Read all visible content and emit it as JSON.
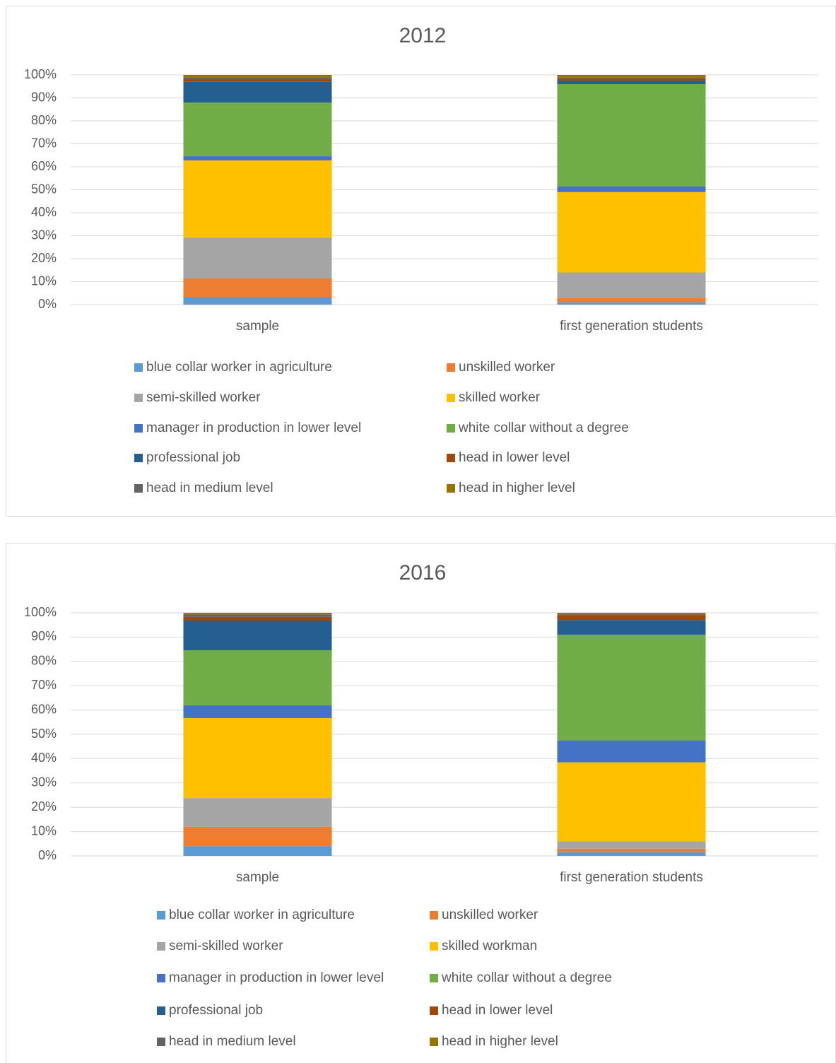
{
  "chart_data": [
    {
      "type": "bar",
      "stacked": true,
      "title": "2012",
      "categories": [
        "sample",
        "first generation students"
      ],
      "series": [
        {
          "name": "blue collar worker in agriculture",
          "color": "#5b9bd5",
          "values": [
            3.4,
            1
          ]
        },
        {
          "name": "unskilled worker",
          "color": "#ed7d31",
          "values": [
            8,
            2
          ]
        },
        {
          "name": "semi-skilled worker",
          "color": "#a5a5a5",
          "values": [
            17.8,
            11
          ]
        },
        {
          "name": "skilled worker",
          "color": "#ffc000",
          "values": [
            33.6,
            35
          ]
        },
        {
          "name": "manager in production in lower level",
          "color": "#4472c4",
          "values": [
            1.8,
            2.5
          ]
        },
        {
          "name": "white collar without a degree",
          "color": "#70ad47",
          "values": [
            23.4,
            44.5
          ]
        },
        {
          "name": "professional job",
          "color": "#255e91",
          "values": [
            9,
            1.5
          ]
        },
        {
          "name": "head in lower level",
          "color": "#9e480e",
          "values": [
            1,
            1
          ]
        },
        {
          "name": "head in medium level",
          "color": "#636363",
          "values": [
            1,
            0.5
          ]
        },
        {
          "name": "head in higher level",
          "color": "#997300",
          "values": [
            1,
            1
          ]
        }
      ],
      "ylim": [
        0,
        100
      ],
      "yticks": [
        {
          "value": 0,
          "label": "0%"
        },
        {
          "value": 10,
          "label": "10%"
        },
        {
          "value": 20,
          "label": "20%"
        },
        {
          "value": 30,
          "label": "30%"
        },
        {
          "value": 40,
          "label": "40%"
        },
        {
          "value": 50,
          "label": "50%"
        },
        {
          "value": 60,
          "label": "60%"
        },
        {
          "value": 70,
          "label": "70%"
        },
        {
          "value": 80,
          "label": "80%"
        },
        {
          "value": 90,
          "label": "90%"
        },
        {
          "value": 100,
          "label": "100%"
        }
      ],
      "grid": true,
      "legend": "bottom"
    },
    {
      "type": "bar",
      "stacked": true,
      "title": "2016",
      "categories": [
        "sample",
        "first generation students"
      ],
      "series": [
        {
          "name": "blue collar worker in agriculture",
          "color": "#5b9bd5",
          "values": [
            4,
            1.5
          ]
        },
        {
          "name": "unskilled worker",
          "color": "#ed7d31",
          "values": [
            8,
            1.5
          ]
        },
        {
          "name": "semi-skilled worker",
          "color": "#a5a5a5",
          "values": [
            11.8,
            3
          ]
        },
        {
          "name": "skilled workman",
          "color": "#ffc000",
          "values": [
            32.9,
            32.5
          ]
        },
        {
          "name": "manager in production in lower level",
          "color": "#4472c4",
          "values": [
            5.3,
            9
          ]
        },
        {
          "name": "white collar without a degree",
          "color": "#70ad47",
          "values": [
            22.6,
            43.5
          ]
        },
        {
          "name": "professional job",
          "color": "#255e91",
          "values": [
            12.2,
            6
          ]
        },
        {
          "name": "head in lower level",
          "color": "#9e480e",
          "values": [
            1.5,
            2
          ]
        },
        {
          "name": "head in medium level",
          "color": "#636363",
          "values": [
            1,
            0.3
          ]
        },
        {
          "name": "head in higher level",
          "color": "#997300",
          "values": [
            0.7,
            0.7
          ]
        }
      ],
      "ylim": [
        0,
        100
      ],
      "yticks": [
        {
          "value": 0,
          "label": "0%"
        },
        {
          "value": 10,
          "label": "10%"
        },
        {
          "value": 20,
          "label": "20%"
        },
        {
          "value": 30,
          "label": "30%"
        },
        {
          "value": 40,
          "label": "40%"
        },
        {
          "value": 50,
          "label": "50%"
        },
        {
          "value": 60,
          "label": "60%"
        },
        {
          "value": 70,
          "label": "70%"
        },
        {
          "value": 80,
          "label": "80%"
        },
        {
          "value": 90,
          "label": "90%"
        },
        {
          "value": 100,
          "label": "100%"
        }
      ],
      "grid": true,
      "legend": "bottom"
    }
  ]
}
